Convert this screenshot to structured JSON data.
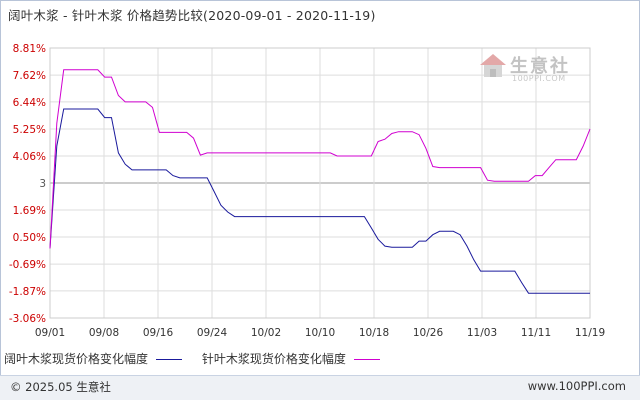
{
  "title": "阔叶木浆 - 针叶木浆 价格趋势比较(2020-09-01 - 2020-11-19)",
  "copyright": "© 2025.05 生意社",
  "site_url": "www.100PPI.com",
  "logo": {
    "name": "生意社",
    "url": "100PPI.COM"
  },
  "chart_data": {
    "type": "line",
    "title": "阔叶木浆 - 针叶木浆 价格趋势比较(2020-09-01 - 2020-11-19)",
    "y_ticks": [
      "8.81%",
      "7.62%",
      "6.44%",
      "5.25%",
      "4.06%",
      "3",
      "1.69%",
      "0.50%",
      "-0.69%",
      "-1.87%",
      "-3.06%"
    ],
    "y_tick_values": [
      8.81,
      7.62,
      6.44,
      5.25,
      4.06,
      2.875,
      1.69,
      0.5,
      -0.69,
      -1.87,
      -3.06
    ],
    "ylim": [
      -3.06,
      8.81
    ],
    "x_ticks": [
      "09/01",
      "09/08",
      "09/16",
      "09/24",
      "10/02",
      "10/10",
      "10/18",
      "10/26",
      "11/03",
      "11/11",
      "11/19"
    ],
    "xlim": [
      "2020-09-01",
      "2020-11-19"
    ],
    "grid": true,
    "legend_position": "bottom",
    "series": [
      {
        "name": "阔叶木浆现货价格变化幅度",
        "color": "#1a1a9c",
        "points": [
          [
            "2020-09-01",
            0.0
          ],
          [
            "2020-09-02",
            4.5
          ],
          [
            "2020-09-03",
            6.13
          ],
          [
            "2020-09-08",
            6.13
          ],
          [
            "2020-09-09",
            5.75
          ],
          [
            "2020-09-10",
            5.75
          ],
          [
            "2020-09-11",
            4.2
          ],
          [
            "2020-09-12",
            3.7
          ],
          [
            "2020-09-13",
            3.45
          ],
          [
            "2020-09-14",
            3.45
          ],
          [
            "2020-09-18",
            3.45
          ],
          [
            "2020-09-19",
            3.2
          ],
          [
            "2020-09-20",
            3.1
          ],
          [
            "2020-09-24",
            3.1
          ],
          [
            "2020-09-25",
            2.5
          ],
          [
            "2020-09-26",
            1.9
          ],
          [
            "2020-09-27",
            1.6
          ],
          [
            "2020-09-28",
            1.4
          ],
          [
            "2020-10-17",
            1.4
          ],
          [
            "2020-10-18",
            0.9
          ],
          [
            "2020-10-19",
            0.4
          ],
          [
            "2020-10-20",
            0.1
          ],
          [
            "2020-10-21",
            0.05
          ],
          [
            "2020-10-24",
            0.05
          ],
          [
            "2020-10-25",
            0.32
          ],
          [
            "2020-10-26",
            0.32
          ],
          [
            "2020-10-27",
            0.6
          ],
          [
            "2020-10-28",
            0.75
          ],
          [
            "2020-10-30",
            0.75
          ],
          [
            "2020-10-31",
            0.6
          ],
          [
            "2020-11-01",
            0.1
          ],
          [
            "2020-11-02",
            -0.5
          ],
          [
            "2020-11-03",
            -1.0
          ],
          [
            "2020-11-08",
            -1.0
          ],
          [
            "2020-11-09",
            -1.5
          ],
          [
            "2020-11-10",
            -1.97
          ],
          [
            "2020-11-19",
            -1.97
          ]
        ]
      },
      {
        "name": "针叶木浆现货价格变化幅度",
        "color": "#d000d0",
        "points": [
          [
            "2020-09-01",
            0.0
          ],
          [
            "2020-09-02",
            5.5
          ],
          [
            "2020-09-03",
            7.85
          ],
          [
            "2020-09-08",
            7.85
          ],
          [
            "2020-09-09",
            7.53
          ],
          [
            "2020-09-10",
            7.53
          ],
          [
            "2020-09-11",
            6.72
          ],
          [
            "2020-09-12",
            6.44
          ],
          [
            "2020-09-15",
            6.44
          ],
          [
            "2020-09-16",
            6.2
          ],
          [
            "2020-09-17",
            5.1
          ],
          [
            "2020-09-21",
            5.1
          ],
          [
            "2020-09-22",
            4.85
          ],
          [
            "2020-09-23",
            4.1
          ],
          [
            "2020-09-24",
            4.2
          ],
          [
            "2020-10-12",
            4.2
          ],
          [
            "2020-10-13",
            4.06
          ],
          [
            "2020-10-18",
            4.06
          ],
          [
            "2020-10-19",
            4.7
          ],
          [
            "2020-10-20",
            4.8
          ],
          [
            "2020-10-21",
            5.05
          ],
          [
            "2020-10-22",
            5.13
          ],
          [
            "2020-10-24",
            5.13
          ],
          [
            "2020-10-25",
            5.0
          ],
          [
            "2020-10-26",
            4.4
          ],
          [
            "2020-10-27",
            3.6
          ],
          [
            "2020-10-28",
            3.55
          ],
          [
            "2020-11-03",
            3.55
          ],
          [
            "2020-11-04",
            3.0
          ],
          [
            "2020-11-05",
            2.95
          ],
          [
            "2020-11-10",
            2.95
          ],
          [
            "2020-11-11",
            3.2
          ],
          [
            "2020-11-12",
            3.2
          ],
          [
            "2020-11-13",
            3.55
          ],
          [
            "2020-11-14",
            3.9
          ],
          [
            "2020-11-17",
            3.9
          ],
          [
            "2020-11-18",
            4.5
          ],
          [
            "2020-11-19",
            5.25
          ]
        ]
      }
    ]
  }
}
